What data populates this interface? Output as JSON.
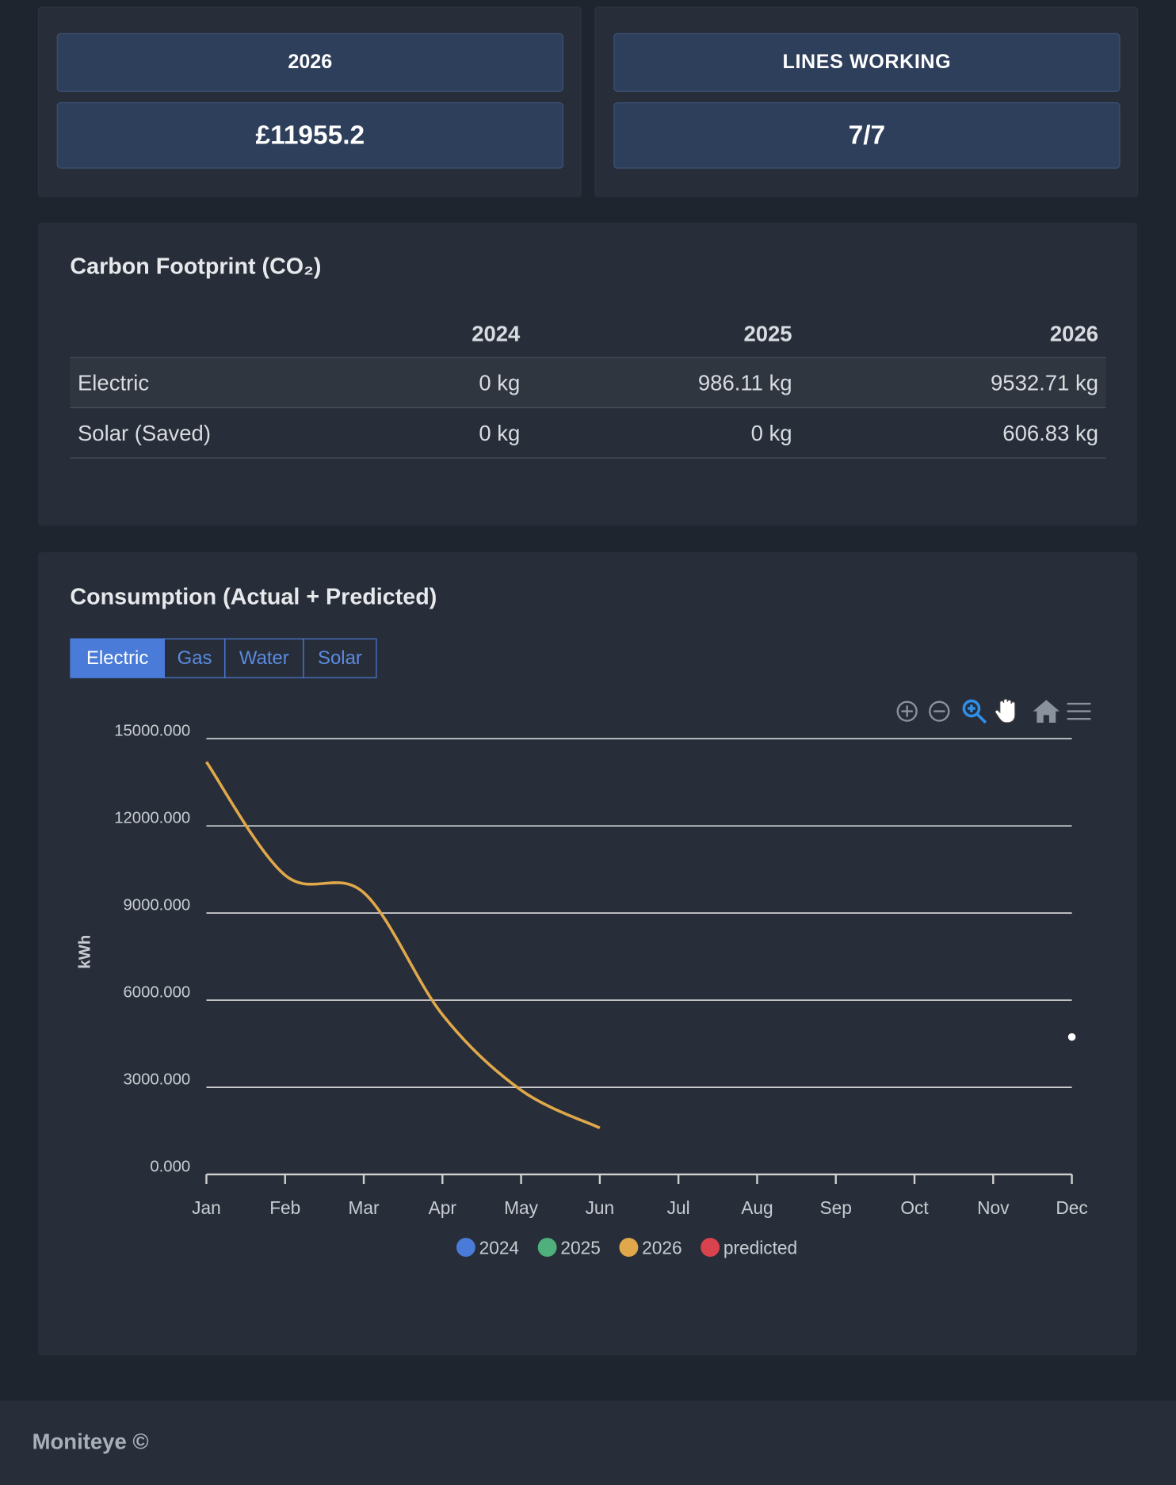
{
  "cards": [
    {
      "label": "2026",
      "value": "£11955.2"
    },
    {
      "label": "LINES WORKING",
      "value": "7/7"
    }
  ],
  "carbon": {
    "title": "Carbon Footprint (CO₂)",
    "columns": [
      "2024",
      "2025",
      "2026"
    ],
    "rows": [
      {
        "label": "Electric",
        "cells": [
          "0 kg",
          "986.11 kg",
          "9532.71 kg"
        ]
      },
      {
        "label": "Solar (Saved)",
        "cells": [
          "0 kg",
          "0 kg",
          "606.83 kg"
        ]
      }
    ]
  },
  "chart_data": {
    "type": "line",
    "title": "Consumption (Actual + Predicted)",
    "tabs": [
      "Electric",
      "Gas",
      "Water",
      "Solar"
    ],
    "active_tab": 0,
    "y_label": "kWh",
    "categories": [
      "Jan",
      "Feb",
      "Mar",
      "Apr",
      "May",
      "Jun",
      "Jul",
      "Aug",
      "Sep",
      "Oct",
      "Nov",
      "Dec"
    ],
    "ylim": [
      0,
      15000
    ],
    "yticks": [
      {
        "value": 0,
        "label": "0.000"
      },
      {
        "value": 3000,
        "label": "3000.000"
      },
      {
        "value": 6000,
        "label": "6000.000"
      },
      {
        "value": 9000,
        "label": "9000.000"
      },
      {
        "value": 12000,
        "label": "12000.000"
      },
      {
        "value": 15000,
        "label": "15000.000"
      }
    ],
    "grid": true,
    "series": [
      {
        "name": "2024",
        "color": "#4a7bd8",
        "values": [
          null,
          null,
          null,
          null,
          null,
          null,
          null,
          null,
          null,
          null,
          null,
          null
        ]
      },
      {
        "name": "2025",
        "color": "#4fb07c",
        "values": [
          null,
          null,
          null,
          null,
          null,
          null,
          null,
          null,
          null,
          null,
          null,
          null
        ]
      },
      {
        "name": "2026",
        "color": "#e0a84a",
        "values": [
          14200,
          10300,
          9700,
          5500,
          2900,
          1600,
          null,
          null,
          null,
          null,
          null,
          null
        ]
      },
      {
        "name": "predicted",
        "color": "#d9434e",
        "point_color": "#ffffff",
        "values": [
          null,
          null,
          null,
          null,
          null,
          null,
          null,
          null,
          null,
          null,
          null,
          4730
        ]
      }
    ]
  },
  "footer": "Moniteye ©"
}
